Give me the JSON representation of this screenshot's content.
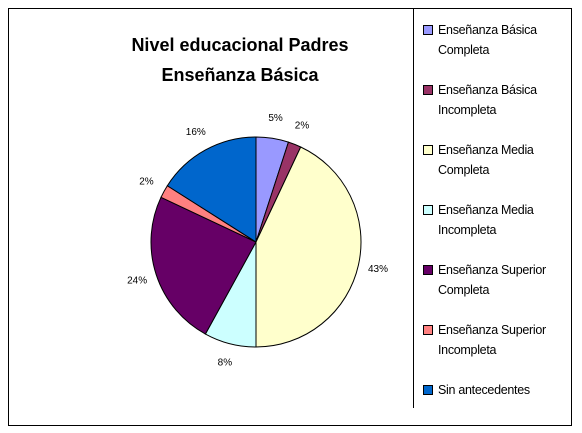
{
  "chart_data": {
    "type": "pie",
    "title": "Nivel educacional Padres Enseñanza Básica",
    "categories": [
      "Enseñanza Básica Completa",
      "Enseñanza Básica Incompleta",
      "Enseñanza Media Completa",
      "Enseñanza Media Incompleta",
      "Enseñanza Superior Completa",
      "Enseñanza Superior Incompleta",
      "Sin antecedentes"
    ],
    "values": [
      5,
      2,
      43,
      8,
      24,
      2,
      16
    ],
    "value_labels": [
      "5%",
      "2%",
      "43%",
      "8%",
      "24%",
      "2%",
      "16%"
    ],
    "colors": [
      "#9999ff",
      "#993366",
      "#ffffcc",
      "#ccffff",
      "#660066",
      "#ff8080",
      "#0066cc"
    ],
    "legend": "right"
  }
}
